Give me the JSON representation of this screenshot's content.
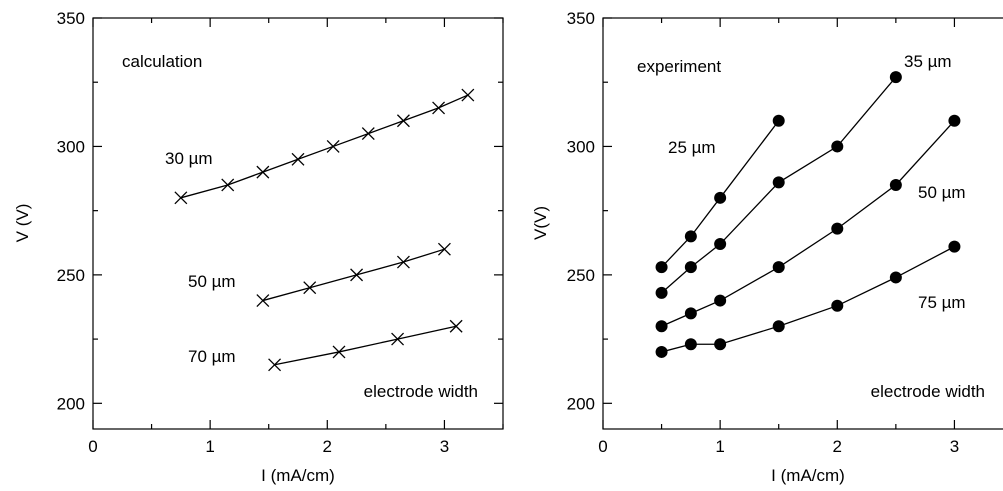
{
  "chart_data": [
    {
      "type": "line",
      "marker": "x",
      "xlabel": "I (mA/cm)",
      "ylabel": "V (V)",
      "xlim": [
        0,
        3.5
      ],
      "ylim": [
        190,
        350
      ],
      "xticks": [
        0,
        1,
        2,
        3
      ],
      "yticks": [
        200,
        250,
        300,
        350
      ],
      "annotations": [
        "calculation",
        "electrode width"
      ],
      "series": [
        {
          "label": "30 µm",
          "x": [
            0.75,
            1.15,
            1.45,
            1.75,
            2.05,
            2.35,
            2.65,
            2.95,
            3.2
          ],
          "y": [
            280,
            285,
            290,
            295,
            300,
            305,
            310,
            315,
            320
          ]
        },
        {
          "label": "50 µm",
          "x": [
            1.45,
            1.85,
            2.25,
            2.65,
            3.0
          ],
          "y": [
            240,
            245,
            250,
            255,
            260
          ]
        },
        {
          "label": "70 µm",
          "x": [
            1.55,
            2.1,
            2.6,
            3.1
          ],
          "y": [
            215,
            220,
            225,
            230
          ]
        }
      ]
    },
    {
      "type": "line",
      "marker": "circle",
      "xlabel": "I (mA/cm)",
      "ylabel": "V(V)",
      "xlim": [
        0,
        3.5
      ],
      "ylim": [
        190,
        350
      ],
      "xticks": [
        0,
        1,
        2,
        3
      ],
      "yticks": [
        200,
        250,
        300,
        350
      ],
      "annotations": [
        "experiment",
        "electrode width"
      ],
      "series": [
        {
          "label": "25 µm",
          "x": [
            0.5,
            0.75,
            1.0,
            1.5
          ],
          "y": [
            253,
            265,
            280,
            310
          ]
        },
        {
          "label": "35 µm",
          "x": [
            0.5,
            0.75,
            1.0,
            1.5,
            2.0,
            2.5
          ],
          "y": [
            243,
            253,
            262,
            286,
            300,
            327
          ]
        },
        {
          "label": "50 µm",
          "x": [
            0.5,
            0.75,
            1.0,
            1.5,
            2.0,
            2.5,
            3.0
          ],
          "y": [
            230,
            235,
            240,
            253,
            268,
            285,
            310
          ]
        },
        {
          "label": "75 µm",
          "x": [
            0.5,
            0.75,
            1.0,
            1.5,
            2.0,
            2.5,
            3.0
          ],
          "y": [
            220,
            223,
            223,
            230,
            238,
            249,
            261
          ]
        }
      ]
    }
  ]
}
